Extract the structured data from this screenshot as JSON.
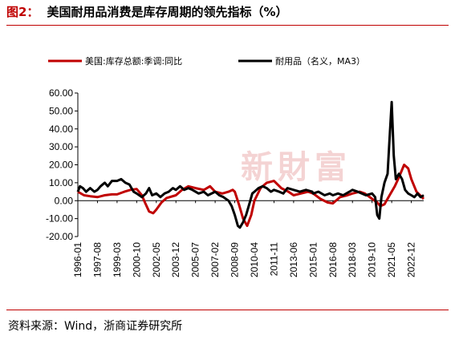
{
  "header": {
    "fig_label": "图2：",
    "title": "美国耐用品消费是库存周期的领先指标（%）"
  },
  "footer": {
    "source": "资料来源：Wind，浙商证券研究所"
  },
  "watermark": "新財富",
  "colors": {
    "accent": "#c00000",
    "series1": "#c00000",
    "series2": "#000000"
  },
  "chart_data": {
    "type": "line",
    "title": "美国耐用品消费是库存周期的领先指标（%）",
    "xlabel": "",
    "ylabel": "",
    "ylim": [
      -20,
      60
    ],
    "yticks": [
      "60.00",
      "50.00",
      "40.00",
      "30.00",
      "20.00",
      "10.00",
      "0.00",
      "-10.00",
      "-20.00"
    ],
    "x_start": "1996-01",
    "x_end": "2023-12",
    "x_tick_labels": [
      "1996-01",
      "1997-08",
      "1999-03",
      "2000-10",
      "2002-05",
      "2003-12",
      "2005-07",
      "2007-02",
      "2008-09",
      "2010-04",
      "2011-11",
      "2013-06",
      "2015-01",
      "2016-08",
      "2018-03",
      "2019-10",
      "2021-05",
      "2022-12"
    ],
    "grid": false,
    "legend_position": "top",
    "series": [
      {
        "name": "美国:库存总额:季调:同比",
        "color": "#c00000",
        "points": [
          [
            "1996-01",
            5
          ],
          [
            "1996-07",
            3
          ],
          [
            "1997-01",
            2.5
          ],
          [
            "1997-08",
            2
          ],
          [
            "1998-03",
            3
          ],
          [
            "1998-10",
            3.5
          ],
          [
            "1999-03",
            3.5
          ],
          [
            "1999-10",
            5
          ],
          [
            "2000-04",
            6
          ],
          [
            "2000-10",
            6.5
          ],
          [
            "2001-03",
            3
          ],
          [
            "2001-06",
            -1
          ],
          [
            "2001-10",
            -6
          ],
          [
            "2002-02",
            -7
          ],
          [
            "2002-05",
            -5
          ],
          [
            "2002-10",
            -1
          ],
          [
            "2003-03",
            1.5
          ],
          [
            "2003-12",
            3
          ],
          [
            "2004-06",
            6
          ],
          [
            "2004-12",
            8
          ],
          [
            "2005-07",
            7
          ],
          [
            "2006-03",
            6
          ],
          [
            "2006-09",
            8
          ],
          [
            "2007-02",
            5
          ],
          [
            "2007-09",
            4
          ],
          [
            "2008-03",
            5
          ],
          [
            "2008-07",
            6
          ],
          [
            "2008-09",
            5
          ],
          [
            "2009-01",
            -2
          ],
          [
            "2009-05",
            -10
          ],
          [
            "2009-09",
            -14
          ],
          [
            "2010-01",
            -8
          ],
          [
            "2010-04",
            0
          ],
          [
            "2010-10",
            7
          ],
          [
            "2011-04",
            10
          ],
          [
            "2011-11",
            11
          ],
          [
            "2012-06",
            7
          ],
          [
            "2013-01",
            5
          ],
          [
            "2013-06",
            3
          ],
          [
            "2014-01",
            4
          ],
          [
            "2014-08",
            5
          ],
          [
            "2015-01",
            4
          ],
          [
            "2015-08",
            1
          ],
          [
            "2016-03",
            -1
          ],
          [
            "2016-08",
            -1.5
          ],
          [
            "2017-03",
            2
          ],
          [
            "2017-10",
            3
          ],
          [
            "2018-03",
            4
          ],
          [
            "2018-10",
            5
          ],
          [
            "2019-03",
            4
          ],
          [
            "2019-10",
            1
          ],
          [
            "2020-03",
            -1
          ],
          [
            "2020-06",
            -3
          ],
          [
            "2020-10",
            -2
          ],
          [
            "2021-03",
            3
          ],
          [
            "2021-08",
            8
          ],
          [
            "2021-12",
            13
          ],
          [
            "2022-05",
            20
          ],
          [
            "2022-09",
            18
          ],
          [
            "2022-12",
            12
          ],
          [
            "2023-05",
            5
          ],
          [
            "2023-12",
            1
          ]
        ]
      },
      {
        "name": "耐用品（名义，MA3）",
        "color": "#000000",
        "points": [
          [
            "1996-01",
            5
          ],
          [
            "1996-03",
            8
          ],
          [
            "1996-06",
            7
          ],
          [
            "1996-09",
            5
          ],
          [
            "1997-01",
            7
          ],
          [
            "1997-05",
            5
          ],
          [
            "1997-08",
            6
          ],
          [
            "1997-11",
            8
          ],
          [
            "1998-03",
            10
          ],
          [
            "1998-06",
            8
          ],
          [
            "1998-10",
            11
          ],
          [
            "1999-03",
            11
          ],
          [
            "1999-07",
            12
          ],
          [
            "1999-11",
            10
          ],
          [
            "2000-03",
            9
          ],
          [
            "2000-07",
            5
          ],
          [
            "2000-10",
            4
          ],
          [
            "2001-03",
            2
          ],
          [
            "2001-07",
            4
          ],
          [
            "2001-10",
            7
          ],
          [
            "2002-01",
            3
          ],
          [
            "2002-05",
            4
          ],
          [
            "2002-09",
            2
          ],
          [
            "2003-01",
            4
          ],
          [
            "2003-05",
            5
          ],
          [
            "2003-09",
            7
          ],
          [
            "2003-12",
            6
          ],
          [
            "2004-04",
            8
          ],
          [
            "2004-08",
            6
          ],
          [
            "2004-12",
            7
          ],
          [
            "2005-04",
            6
          ],
          [
            "2005-07",
            5
          ],
          [
            "2005-10",
            4
          ],
          [
            "2006-03",
            5
          ],
          [
            "2006-07",
            3
          ],
          [
            "2007-02",
            5
          ],
          [
            "2007-06",
            3
          ],
          [
            "2007-10",
            2
          ],
          [
            "2008-03",
            0
          ],
          [
            "2008-06",
            -3
          ],
          [
            "2008-09",
            -8
          ],
          [
            "2008-12",
            -14
          ],
          [
            "2009-02",
            -15
          ],
          [
            "2009-05",
            -12
          ],
          [
            "2009-08",
            -8
          ],
          [
            "2009-11",
            -2
          ],
          [
            "2010-02",
            4
          ],
          [
            "2010-04",
            5
          ],
          [
            "2010-08",
            7
          ],
          [
            "2010-12",
            8
          ],
          [
            "2011-04",
            7
          ],
          [
            "2011-08",
            5
          ],
          [
            "2011-11",
            6
          ],
          [
            "2012-04",
            5
          ],
          [
            "2012-08",
            4
          ],
          [
            "2012-12",
            7
          ],
          [
            "2013-06",
            6
          ],
          [
            "2013-12",
            5
          ],
          [
            "2014-06",
            6
          ],
          [
            "2014-12",
            5
          ],
          [
            "2015-01",
            4
          ],
          [
            "2015-06",
            5
          ],
          [
            "2015-12",
            3
          ],
          [
            "2016-05",
            4
          ],
          [
            "2016-08",
            3
          ],
          [
            "2017-01",
            4
          ],
          [
            "2017-06",
            3
          ],
          [
            "2017-12",
            5
          ],
          [
            "2018-03",
            6
          ],
          [
            "2018-08",
            5
          ],
          [
            "2018-12",
            4
          ],
          [
            "2019-04",
            3
          ],
          [
            "2019-10",
            4
          ],
          [
            "2020-01",
            2
          ],
          [
            "2020-03",
            -8
          ],
          [
            "2020-05",
            -10
          ],
          [
            "2020-07",
            2
          ],
          [
            "2020-10",
            10
          ],
          [
            "2021-01",
            15
          ],
          [
            "2021-03",
            35
          ],
          [
            "2021-05",
            55
          ],
          [
            "2021-07",
            25
          ],
          [
            "2021-09",
            12
          ],
          [
            "2021-12",
            15
          ],
          [
            "2022-03",
            12
          ],
          [
            "2022-06",
            6
          ],
          [
            "2022-09",
            4
          ],
          [
            "2022-12",
            3
          ],
          [
            "2023-03",
            2
          ],
          [
            "2023-06",
            4
          ],
          [
            "2023-09",
            2
          ],
          [
            "2023-12",
            3
          ]
        ]
      }
    ]
  }
}
